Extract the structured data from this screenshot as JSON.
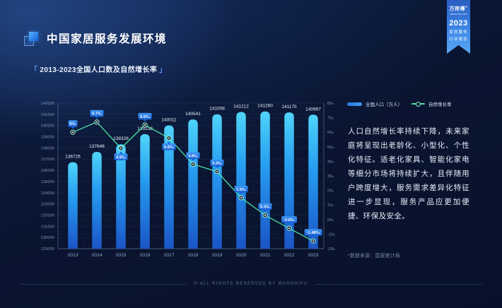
{
  "header": {
    "title": "中国家居服务发展环境",
    "subtitle": {
      "bracket_open": "「",
      "text": "2013-2023全国人口数及自然增长率",
      "bracket_close": "」"
    }
  },
  "ribbon": {
    "brand": "万师傅",
    "reg": "®",
    "site": "wanshifu.com",
    "year": "2023",
    "tag1": "家居服务",
    "tag2": "行业报告"
  },
  "insight": {
    "text": "人口自然增长率持续下降，未来家庭将呈现出老龄化、小型化、个性化特征。适老化家具、智能化家电等细分市场将持续扩大，且伴随用户跨度增大，服务需求差异化特征进一步显现，服务产品应更加便捷、环保及安全。",
    "source": "*数据来源：国家统计局"
  },
  "footer": {
    "text": "© ALL RIGHTS RESERVED BY WANSHIFU"
  },
  "chart_data": {
    "type": "bar",
    "title": "2013-2023全国人口数及自然增长率",
    "categories": [
      "2013",
      "2014",
      "2015",
      "2016",
      "2017",
      "2018",
      "2019",
      "2020",
      "2021",
      "2022",
      "2023"
    ],
    "series": [
      {
        "name": "全国人口（万人）",
        "type": "bar",
        "values": [
          136726,
          137646,
          138326,
          139232,
          140011,
          140541,
          141008,
          141212,
          141260,
          141175,
          140967
        ]
      },
      {
        "name": "自然增长率",
        "type": "line",
        "values": [
          6,
          6.7,
          4.9,
          6.5,
          5.6,
          3.8,
          3.3,
          1.5,
          0.3,
          -0.6,
          -1.48
        ],
        "point_labels": [
          "6‰",
          "6.7‰",
          "4.9‰",
          "6.5‰",
          "5.6‰",
          "3.8‰",
          "3.3‰",
          "1.5‰",
          "0.3‰",
          "-0.6‰",
          "-1.48‰"
        ],
        "label_side": [
          "above",
          "above",
          "below",
          "above",
          "below",
          "above",
          "above",
          "above",
          "above",
          "above",
          "above"
        ]
      }
    ],
    "left_axis": {
      "min": 129000,
      "max": 142000,
      "step": 1000
    },
    "right_axis": {
      "min": -2,
      "max": 8,
      "step": 1,
      "suffix": "‰"
    },
    "legend_position": "top-right",
    "grid": true
  },
  "colors": {
    "bar_top": "#4fd4f9",
    "bar_mid": "#259aef",
    "bar_bottom": "#1b55c6",
    "line": "#49e2a6",
    "marker_ring": "#aef2d6",
    "marker_fill": "#0b1e33",
    "marker_core": "#f2fffa",
    "chip_top": "#3f97f5",
    "chip_bottom": "#1660d6",
    "chip_text": "#ffffff",
    "axis_text": "#7e93b8",
    "year_text": "#92a8cb",
    "bar_label_text": "#eaf3fe",
    "grid_line": "rgba(130,165,225,0.13)",
    "grid_line_minor": "rgba(130,165,225,0.07)",
    "axis_line": "rgba(148,178,232,0.40)"
  }
}
